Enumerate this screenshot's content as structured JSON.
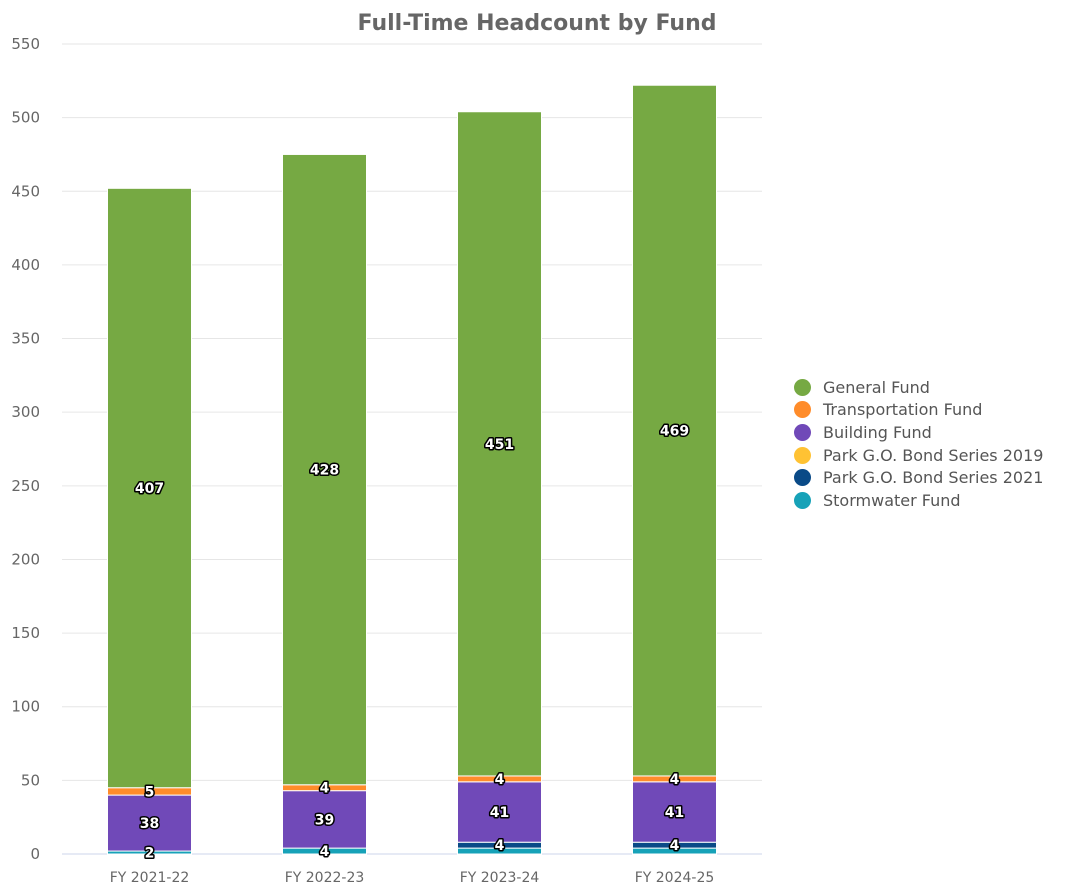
{
  "chart_data": {
    "type": "bar",
    "stacked": true,
    "title": "Full-Time Headcount by Fund",
    "xlabel": "",
    "ylabel": "",
    "ylim": [
      0,
      550
    ],
    "yticks": [
      0,
      50,
      100,
      150,
      200,
      250,
      300,
      350,
      400,
      450,
      500,
      550
    ],
    "grid": true,
    "legend_position": "right",
    "categories": [
      "FY 2021-22",
      "FY 2022-23",
      "FY 2023-24",
      "FY 2024-25"
    ],
    "series": [
      {
        "name": "Stormwater Fund",
        "color": "#17a2b8",
        "values": [
          2,
          4,
          4,
          4
        ]
      },
      {
        "name": "Park G.O. Bond Series 2021",
        "color": "#0a4a87",
        "values": [
          0,
          0,
          4,
          4
        ]
      },
      {
        "name": "Park G.O. Bond Series 2019",
        "color": "#ffc233",
        "values": [
          0,
          0,
          0,
          0
        ]
      },
      {
        "name": "Building Fund",
        "color": "#7049b8",
        "values": [
          38,
          39,
          41,
          41
        ]
      },
      {
        "name": "Transportation Fund",
        "color": "#ff8c2a",
        "values": [
          5,
          4,
          4,
          4
        ]
      },
      {
        "name": "General Fund",
        "color": "#76a943",
        "values": [
          407,
          428,
          451,
          469
        ]
      }
    ],
    "data_labels": [
      {
        "category": "FY 2021-22",
        "series": "Stormwater Fund",
        "text": "2"
      },
      {
        "category": "FY 2021-22",
        "series": "Building Fund",
        "text": "38"
      },
      {
        "category": "FY 2021-22",
        "series": "Transportation Fund",
        "text": "5"
      },
      {
        "category": "FY 2021-22",
        "series": "General Fund",
        "text": "407"
      },
      {
        "category": "FY 2022-23",
        "series": "Stormwater Fund",
        "text": "4"
      },
      {
        "category": "FY 2022-23",
        "series": "Building Fund",
        "text": "39"
      },
      {
        "category": "FY 2022-23",
        "series": "Transportation Fund",
        "text": "4"
      },
      {
        "category": "FY 2022-23",
        "series": "General Fund",
        "text": "428"
      },
      {
        "category": "FY 2023-24",
        "series": "Park G.O. Bond Series 2021",
        "text": "4"
      },
      {
        "category": "FY 2023-24",
        "series": "Building Fund",
        "text": "41"
      },
      {
        "category": "FY 2023-24",
        "series": "Transportation Fund",
        "text": "4"
      },
      {
        "category": "FY 2023-24",
        "series": "General Fund",
        "text": "451"
      },
      {
        "category": "FY 2024-25",
        "series": "Park G.O. Bond Series 2021",
        "text": "4"
      },
      {
        "category": "FY 2024-25",
        "series": "Building Fund",
        "text": "41"
      },
      {
        "category": "FY 2024-25",
        "series": "Transportation Fund",
        "text": "4"
      },
      {
        "category": "FY 2024-25",
        "series": "General Fund",
        "text": "469"
      }
    ],
    "legend": [
      {
        "label": "General Fund",
        "color": "#76a943"
      },
      {
        "label": "Transportation Fund",
        "color": "#ff8c2a"
      },
      {
        "label": "Building Fund",
        "color": "#7049b8"
      },
      {
        "label": "Park G.O. Bond Series 2019",
        "color": "#ffc233"
      },
      {
        "label": "Park G.O. Bond Series 2021",
        "color": "#0a4a87"
      },
      {
        "label": "Stormwater Fund",
        "color": "#17a2b8"
      }
    ]
  }
}
